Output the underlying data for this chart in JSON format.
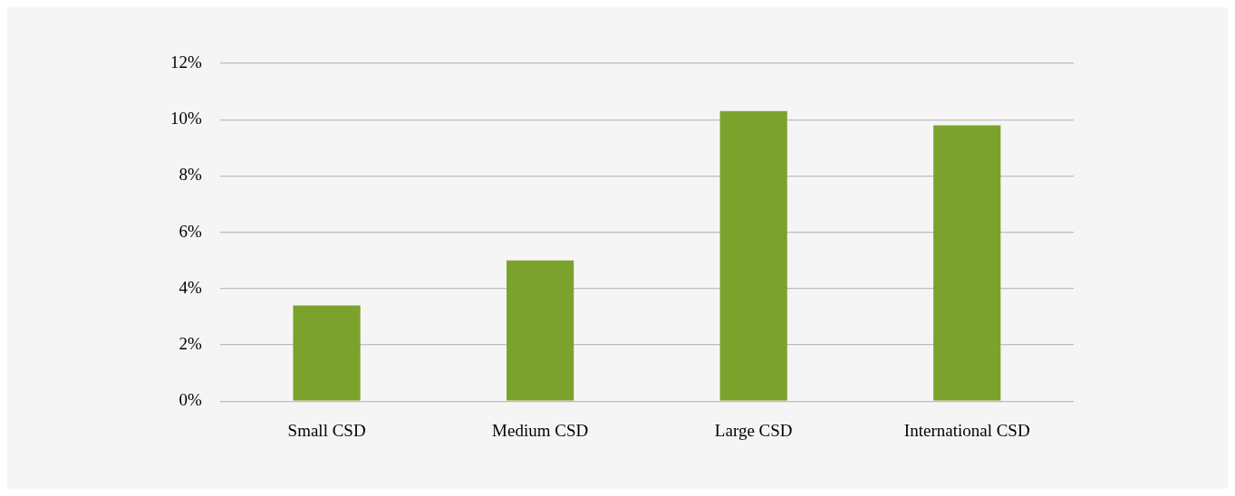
{
  "chart_data": {
    "type": "bar",
    "categories": [
      "Small CSD",
      "Medium CSD",
      "Large CSD",
      "International CSD"
    ],
    "values": [
      3.4,
      5.0,
      10.3,
      9.8
    ],
    "color": "#7ba22c",
    "ylim": [
      0,
      12
    ],
    "yticks": [
      {
        "value": 0,
        "label": "0%"
      },
      {
        "value": 2,
        "label": "2%"
      },
      {
        "value": 4,
        "label": "4%"
      },
      {
        "value": 6,
        "label": "6%"
      },
      {
        "value": 8,
        "label": "8%"
      },
      {
        "value": 10,
        "label": "10%"
      },
      {
        "value": 12,
        "label": "12%"
      }
    ],
    "grid": "y"
  }
}
